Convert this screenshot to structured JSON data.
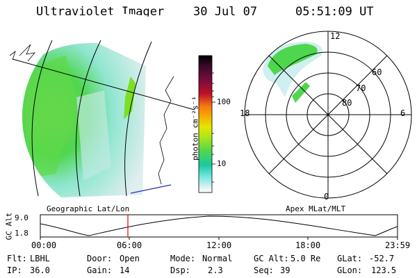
{
  "header": {
    "title": "Ultraviolet Imager",
    "date": "30 Jul 07",
    "time": "05:51:09 UT"
  },
  "colorbar": {
    "unit_label": "photon cm⁻²s⁻¹",
    "tick_labels": [
      "100",
      "10"
    ],
    "colors": [
      "#000000",
      "#3b0a2a",
      "#7a0c3a",
      "#b0102a",
      "#e0201a",
      "#f57a10",
      "#f7b000",
      "#e6e600",
      "#a8e61a",
      "#4fd64f",
      "#1ac8a0",
      "#6fe6e0",
      "#cfeff0",
      "#ffffff"
    ]
  },
  "polar": {
    "mlt_labels": [
      "12",
      "18",
      "6",
      "0"
    ],
    "lat_labels": [
      "60",
      "70",
      "80"
    ]
  },
  "plot": {
    "left_label": "Geographic Lat/Lon",
    "right_label": "Apex MLat/MLT",
    "y_title": "GC Alt",
    "y_max": "9.0",
    "y_min": "1.8",
    "x_ticks": [
      "00:00",
      "06:00",
      "12:00",
      "18:00",
      "23:59"
    ]
  },
  "info": {
    "flt_label": "Flt:",
    "flt_value": "LBHL",
    "ip_label": "IP:",
    "ip_value": "36.0",
    "door_label": "Door:",
    "door_value": "Open",
    "gain_label": "Gain:",
    "gain_value": "14",
    "mode_label": "Mode:",
    "mode_value": "Normal",
    "dsp_label": "Dsp:",
    "dsp_value": "2.3",
    "gcalt_label": "GC Alt:",
    "gcalt_value": "5.0 Re",
    "seq_label": "Seq:",
    "seq_value": "39",
    "glat_label": "GLat:",
    "glat_value": "-52.7",
    "glon_label": "GLon:",
    "glon_value": "123.5"
  }
}
